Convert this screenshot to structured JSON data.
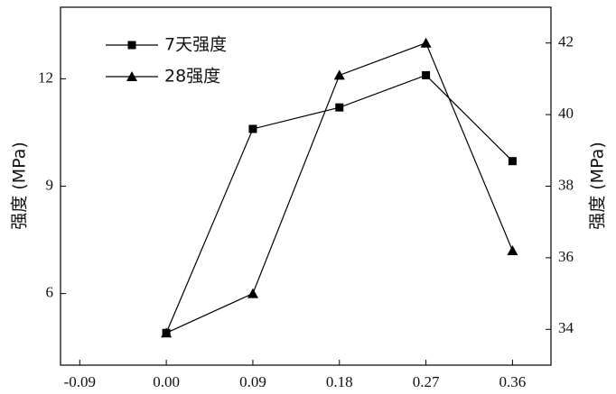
{
  "chart_data": {
    "type": "line",
    "x": [
      0.0,
      0.09,
      0.18,
      0.27,
      0.36
    ],
    "xlim": [
      -0.11,
      0.4
    ],
    "xticks": [
      {
        "value": -0.09,
        "label": "-0.09"
      },
      {
        "value": 0,
        "label": "0.00"
      },
      {
        "value": 0.09,
        "label": "0.09"
      },
      {
        "value": 0.18,
        "label": "0.18"
      },
      {
        "value": 0.27,
        "label": "0.27"
      },
      {
        "value": 0.36,
        "label": "0.36"
      }
    ],
    "ylim": [
      4,
      14
    ],
    "yticks": [
      6,
      9,
      12
    ],
    "y2lim": [
      33,
      43
    ],
    "y2ticks": [
      34,
      36,
      38,
      40,
      42
    ],
    "y_label": "强度 (MPa)",
    "y2_label": "强度 (MPa)",
    "legend": "upper-left",
    "series": [
      {
        "name": "7天强度",
        "color": "#000000",
        "marker": "square",
        "values": [
          4.9,
          10.6,
          11.2,
          12.1,
          9.7
        ]
      },
      {
        "name": "28强度",
        "color": "#000000",
        "marker": "triangle",
        "axis": "y2",
        "values": [
          33.9,
          35.0,
          41.1,
          42.0,
          36.2
        ]
      }
    ]
  }
}
